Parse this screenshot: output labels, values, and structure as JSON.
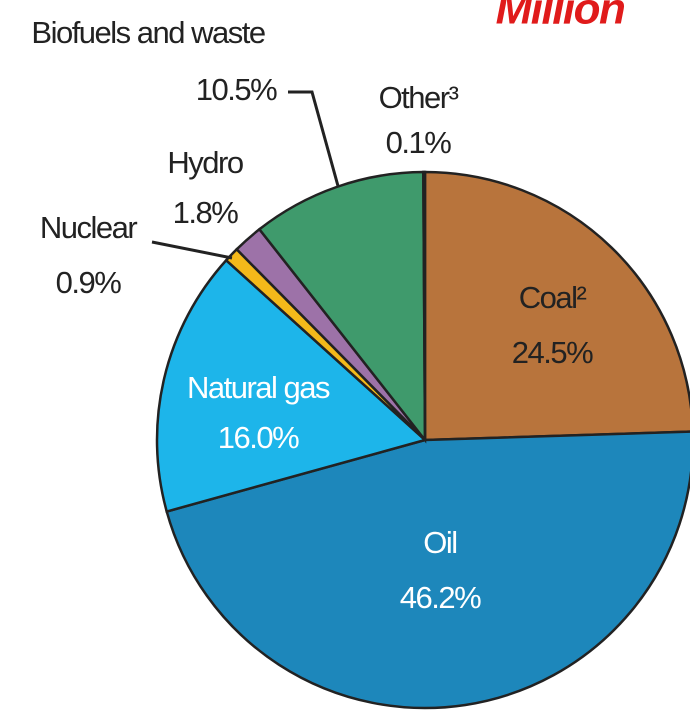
{
  "chart_data": {
    "type": "pie",
    "title": "Million",
    "categories": [
      "Coal²",
      "Oil",
      "Natural gas",
      "Nuclear",
      "Hydro",
      "Biofuels and waste",
      "Other³"
    ],
    "values": [
      24.5,
      46.2,
      16.0,
      0.9,
      1.8,
      10.5,
      0.1
    ],
    "value_labels": [
      "24.5%",
      "46.2%",
      "16.0%",
      "0.9%",
      "1.8%",
      "10.5%",
      "0.1%"
    ],
    "colors": [
      "#b8743c",
      "#1d87bb",
      "#1db5ea",
      "#f4b91a",
      "#9d72a8",
      "#3f9a6c",
      "#6a4a3a"
    ]
  }
}
